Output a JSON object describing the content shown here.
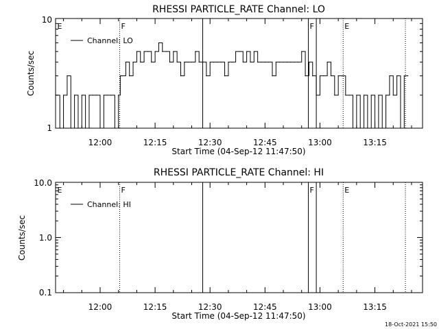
{
  "chart_data": [
    {
      "type": "line",
      "title": "RHESSI PARTICLE_RATE Channel: LO",
      "xlabel": "Start Time (04-Sep-12 11:47:50)",
      "ylabel": "Counts/sec",
      "yscale": "log",
      "xlim": [
        "11:47:50",
        "13:28:00"
      ],
      "ylim": [
        1,
        10
      ],
      "xticks": [
        "12:00",
        "12:15",
        "12:30",
        "12:45",
        "13:00",
        "13:15"
      ],
      "yticks": [
        "1",
        "10"
      ],
      "legend": "top-left",
      "series": [
        {
          "name": "Channel: LO",
          "x": [
            "11:48:00",
            "11:49:00",
            "11:50:00",
            "11:51:00",
            "11:52:00",
            "11:53:00",
            "11:54:00",
            "11:55:00",
            "11:56:00",
            "11:57:00",
            "11:58:00",
            "11:59:00",
            "12:00:00",
            "12:01:00",
            "12:02:00",
            "12:03:00",
            "12:04:00",
            "12:05:00",
            "12:05:30",
            "12:06:00",
            "12:07:00",
            "12:08:00",
            "12:09:00",
            "12:10:00",
            "12:11:00",
            "12:12:00",
            "12:13:00",
            "12:14:00",
            "12:15:00",
            "12:16:00",
            "12:17:00",
            "12:18:00",
            "12:19:00",
            "12:20:00",
            "12:21:00",
            "12:22:00",
            "12:23:00",
            "12:24:00",
            "12:25:00",
            "12:26:00",
            "12:27:00",
            "12:28:00",
            "12:29:00",
            "12:30:00",
            "12:31:00",
            "12:32:00",
            "12:33:00",
            "12:34:00",
            "12:35:00",
            "12:36:00",
            "12:37:00",
            "12:38:00",
            "12:39:00",
            "12:40:00",
            "12:41:00",
            "12:42:00",
            "12:43:00",
            "12:44:00",
            "12:45:00",
            "12:46:00",
            "12:47:00",
            "12:48:00",
            "12:49:00",
            "12:50:00",
            "12:51:00",
            "12:52:00",
            "12:53:00",
            "12:54:00",
            "12:55:00",
            "12:56:00",
            "12:57:00",
            "12:58:00",
            "12:59:00",
            "13:00:00",
            "13:01:00",
            "13:02:00",
            "13:03:00",
            "13:04:00",
            "13:05:00",
            "13:06:00",
            "13:07:00",
            "13:08:00",
            "13:09:00",
            "13:10:00",
            "13:11:00",
            "13:12:00",
            "13:13:00",
            "13:14:00",
            "13:15:00",
            "13:16:00",
            "13:17:00",
            "13:18:00",
            "13:19:00",
            "13:20:00",
            "13:21:00",
            "13:22:00",
            "13:23:00",
            "13:24:00"
          ],
          "values": [
            2,
            1,
            2,
            3,
            1,
            2,
            1,
            2,
            1,
            2,
            2,
            2,
            1,
            2,
            2,
            2,
            1,
            2,
            3,
            3,
            4,
            3,
            4,
            5,
            4,
            5,
            5,
            4,
            5,
            6,
            5,
            5,
            4,
            5,
            4,
            3,
            4,
            4,
            4,
            5,
            4,
            4,
            3,
            4,
            4,
            4,
            4,
            3,
            4,
            4,
            5,
            5,
            4,
            5,
            4,
            5,
            4,
            4,
            4,
            4,
            3,
            4,
            4,
            4,
            4,
            4,
            4,
            4,
            5,
            3,
            4,
            3,
            2,
            3,
            3,
            4,
            3,
            2,
            3,
            3,
            2,
            2,
            1,
            2,
            1,
            2,
            1,
            2,
            1,
            2,
            1,
            2,
            3,
            2,
            3,
            1,
            3,
            3
          ]
        }
      ],
      "markers": [
        {
          "label": "E",
          "time": "11:47:55",
          "style": "none"
        },
        {
          "label": "F",
          "time": "12:05:20",
          "style": "dotted"
        },
        {
          "label": "",
          "time": "12:28:00",
          "style": "solid"
        },
        {
          "label": "F",
          "time": "12:56:50",
          "style": "solid"
        },
        {
          "label": "",
          "time": "12:59:00",
          "style": "solid"
        },
        {
          "label": "E",
          "time": "13:06:20",
          "style": "dotted"
        },
        {
          "label": "",
          "time": "13:23:20",
          "style": "dotted"
        }
      ]
    },
    {
      "type": "line",
      "title": "RHESSI PARTICLE_RATE Channel: HI",
      "xlabel": "Start Time (04-Sep-12 11:47:50)",
      "ylabel": "Counts/sec",
      "yscale": "log",
      "xlim": [
        "11:47:50",
        "13:28:00"
      ],
      "ylim": [
        0.1,
        10
      ],
      "xticks": [
        "12:00",
        "12:15",
        "12:30",
        "12:45",
        "13:00",
        "13:15"
      ],
      "yticks": [
        "0.1",
        "1.0",
        "10.0"
      ],
      "legend": "top-left",
      "series": [
        {
          "name": "Channel: HI",
          "x": [],
          "values": []
        }
      ],
      "markers": [
        {
          "label": "E",
          "time": "11:47:55",
          "style": "none"
        },
        {
          "label": "F",
          "time": "12:05:20",
          "style": "dotted"
        },
        {
          "label": "",
          "time": "12:28:00",
          "style": "solid"
        },
        {
          "label": "F",
          "time": "12:56:50",
          "style": "solid"
        },
        {
          "label": "",
          "time": "12:59:00",
          "style": "solid"
        },
        {
          "label": "E",
          "time": "13:06:20",
          "style": "dotted"
        },
        {
          "label": "",
          "time": "13:23:20",
          "style": "dotted"
        }
      ]
    }
  ],
  "footer": {
    "timestamp": "18-Oct-2021 15:50"
  }
}
